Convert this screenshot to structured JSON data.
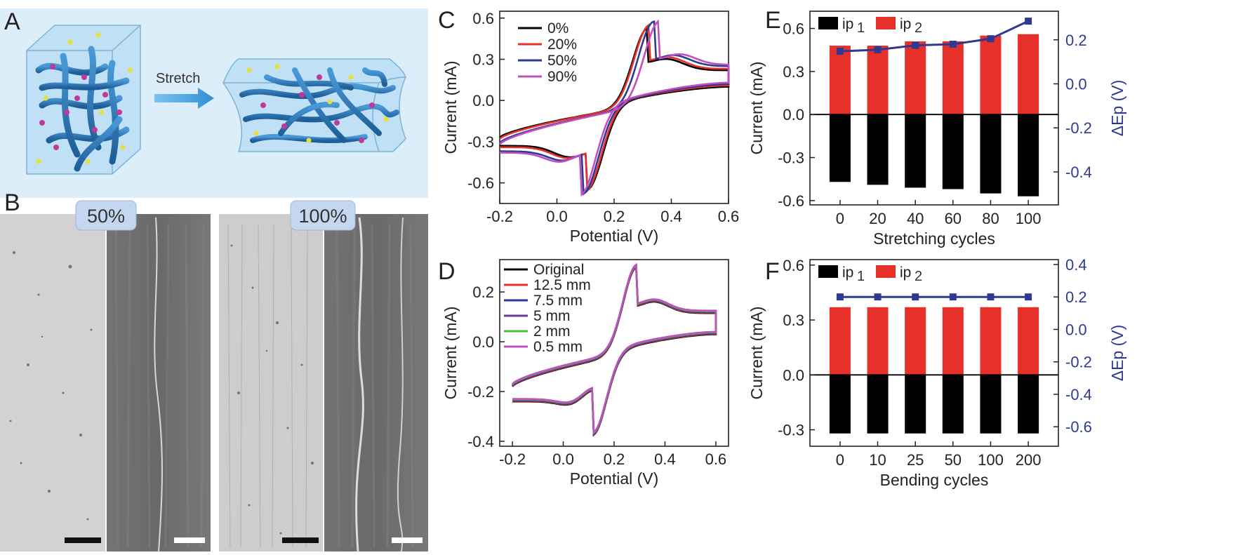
{
  "panels": {
    "A": {
      "label": "A",
      "arrow_text": "Stretch"
    },
    "B": {
      "label": "B",
      "badges": [
        "50%",
        "100%"
      ]
    }
  },
  "colors": {
    "black": "#000000",
    "red": "#e8302a",
    "blue": "#2e3a91",
    "purple": "#9b4fb0",
    "dark_purple": "#6a3d9a",
    "green": "#4cbf3f",
    "magenta": "#c04fc0",
    "panel_bg": "#dbeefa"
  },
  "chart_data": [
    {
      "panel": "C",
      "type": "line",
      "xlabel": "Potential (V)",
      "ylabel": "Current (mA)",
      "xlim": [
        -0.2,
        0.6
      ],
      "ylim": [
        -0.75,
        0.65
      ],
      "xticks": [
        "-0.2",
        "0.0",
        "0.2",
        "0.4",
        "0.6"
      ],
      "yticks": [
        "-0.6",
        "-0.3",
        "0.0",
        "0.3",
        "0.6"
      ],
      "legend_position": "top-left",
      "series": [
        {
          "name": "0%",
          "color": "#000000",
          "peak_anodic": [
            0.32,
            0.53
          ],
          "peak_cathodic": [
            0.105,
            -0.65
          ],
          "start": [
            -0.2,
            -0.27
          ],
          "end_high": [
            0.6,
            0.1
          ],
          "end_low": [
            0.6,
            0.22
          ]
        },
        {
          "name": "20%",
          "color": "#e8302a",
          "peak_anodic": [
            0.325,
            0.55
          ],
          "peak_cathodic": [
            0.1,
            -0.66
          ],
          "start": [
            -0.2,
            -0.28
          ],
          "end_high": [
            0.6,
            0.11
          ],
          "end_low": [
            0.6,
            0.23
          ]
        },
        {
          "name": "50%",
          "color": "#2e3a91",
          "peak_anodic": [
            0.34,
            0.575
          ],
          "peak_cathodic": [
            0.09,
            -0.68
          ],
          "start": [
            -0.2,
            -0.31
          ],
          "end_high": [
            0.6,
            0.12
          ],
          "end_low": [
            0.6,
            0.25
          ]
        },
        {
          "name": "90%",
          "color": "#c04fc0",
          "peak_anodic": [
            0.36,
            0.58
          ],
          "peak_cathodic": [
            0.08,
            -0.69
          ],
          "start": [
            -0.2,
            -0.32
          ],
          "end_high": [
            0.6,
            0.13
          ],
          "end_low": [
            0.6,
            0.26
          ]
        }
      ]
    },
    {
      "panel": "D",
      "type": "line",
      "xlabel": "Potential (V)",
      "ylabel": "Current (mA)",
      "xlim": [
        -0.25,
        0.65
      ],
      "ylim": [
        -0.42,
        0.33
      ],
      "xticks": [
        "-0.2",
        "0.0",
        "0.2",
        "0.4",
        "0.6"
      ],
      "yticks": [
        "-0.4",
        "-0.2",
        "0.0",
        "0.2"
      ],
      "legend_position": "top-left",
      "series": [
        {
          "name": "Original",
          "color": "#000000"
        },
        {
          "name": "12.5 mm",
          "color": "#e8302a"
        },
        {
          "name": "7.5 mm",
          "color": "#2e3a91"
        },
        {
          "name": "5 mm",
          "color": "#6a3d9a"
        },
        {
          "name": "2 mm",
          "color": "#4cbf3f"
        },
        {
          "name": "0.5 mm",
          "color": "#c04fc0"
        }
      ],
      "curve": {
        "peak_anodic": [
          0.29,
          0.3
        ],
        "peak_cathodic": [
          0.115,
          -0.375
        ],
        "start": [
          -0.2,
          -0.18
        ],
        "end_high": [
          0.6,
          0.03
        ],
        "end_low": [
          0.6,
          0.115
        ]
      }
    },
    {
      "panel": "E",
      "type": "bar",
      "xlabel": "Stretching cycles",
      "ylabel": "Current (mA)",
      "y2label": "ΔEp (V)",
      "categories": [
        "0",
        "20",
        "40",
        "60",
        "80",
        "100"
      ],
      "ylim": [
        -0.63,
        0.72
      ],
      "yticks": [
        "-0.6",
        "-0.3",
        "0.0",
        "0.3",
        "0.6"
      ],
      "y2ticks": [
        "-0.4",
        "-0.2",
        "0.0",
        "0.2"
      ],
      "legend_position": "top-left",
      "series": [
        {
          "name": "ip1",
          "color": "#000000",
          "values": [
            -0.47,
            -0.49,
            -0.51,
            -0.52,
            -0.55,
            -0.57
          ]
        },
        {
          "name": "ip2",
          "color": "#e8302a",
          "values": [
            0.48,
            0.48,
            0.51,
            0.51,
            0.55,
            0.56
          ]
        },
        {
          "name": "ΔEp",
          "color": "#2e3a91",
          "axis": "right",
          "values": [
            0.148,
            0.155,
            0.175,
            0.18,
            0.205,
            0.285
          ]
        }
      ]
    },
    {
      "panel": "F",
      "type": "bar",
      "xlabel": "Bending cycles",
      "ylabel": "Current (mA)",
      "y2label": "ΔEp (V)",
      "categories": [
        "0",
        "10",
        "25",
        "50",
        "100",
        "200"
      ],
      "ylim": [
        -0.39,
        0.63
      ],
      "yticks": [
        "-0.3",
        "0.0",
        "0.3",
        "0.6"
      ],
      "y2ticks": [
        "-0.6",
        "-0.4",
        "-0.2",
        "0.0",
        "0.2",
        "0.4"
      ],
      "legend_position": "top-left",
      "series": [
        {
          "name": "ip1",
          "color": "#000000",
          "values": [
            -0.32,
            -0.32,
            -0.32,
            -0.32,
            -0.32,
            -0.32
          ]
        },
        {
          "name": "ip2",
          "color": "#e8302a",
          "values": [
            0.37,
            0.37,
            0.37,
            0.37,
            0.37,
            0.37
          ]
        },
        {
          "name": "ΔEp",
          "color": "#2e3a91",
          "axis": "right",
          "values": [
            0.2,
            0.2,
            0.2,
            0.2,
            0.2,
            0.2
          ]
        }
      ]
    }
  ]
}
